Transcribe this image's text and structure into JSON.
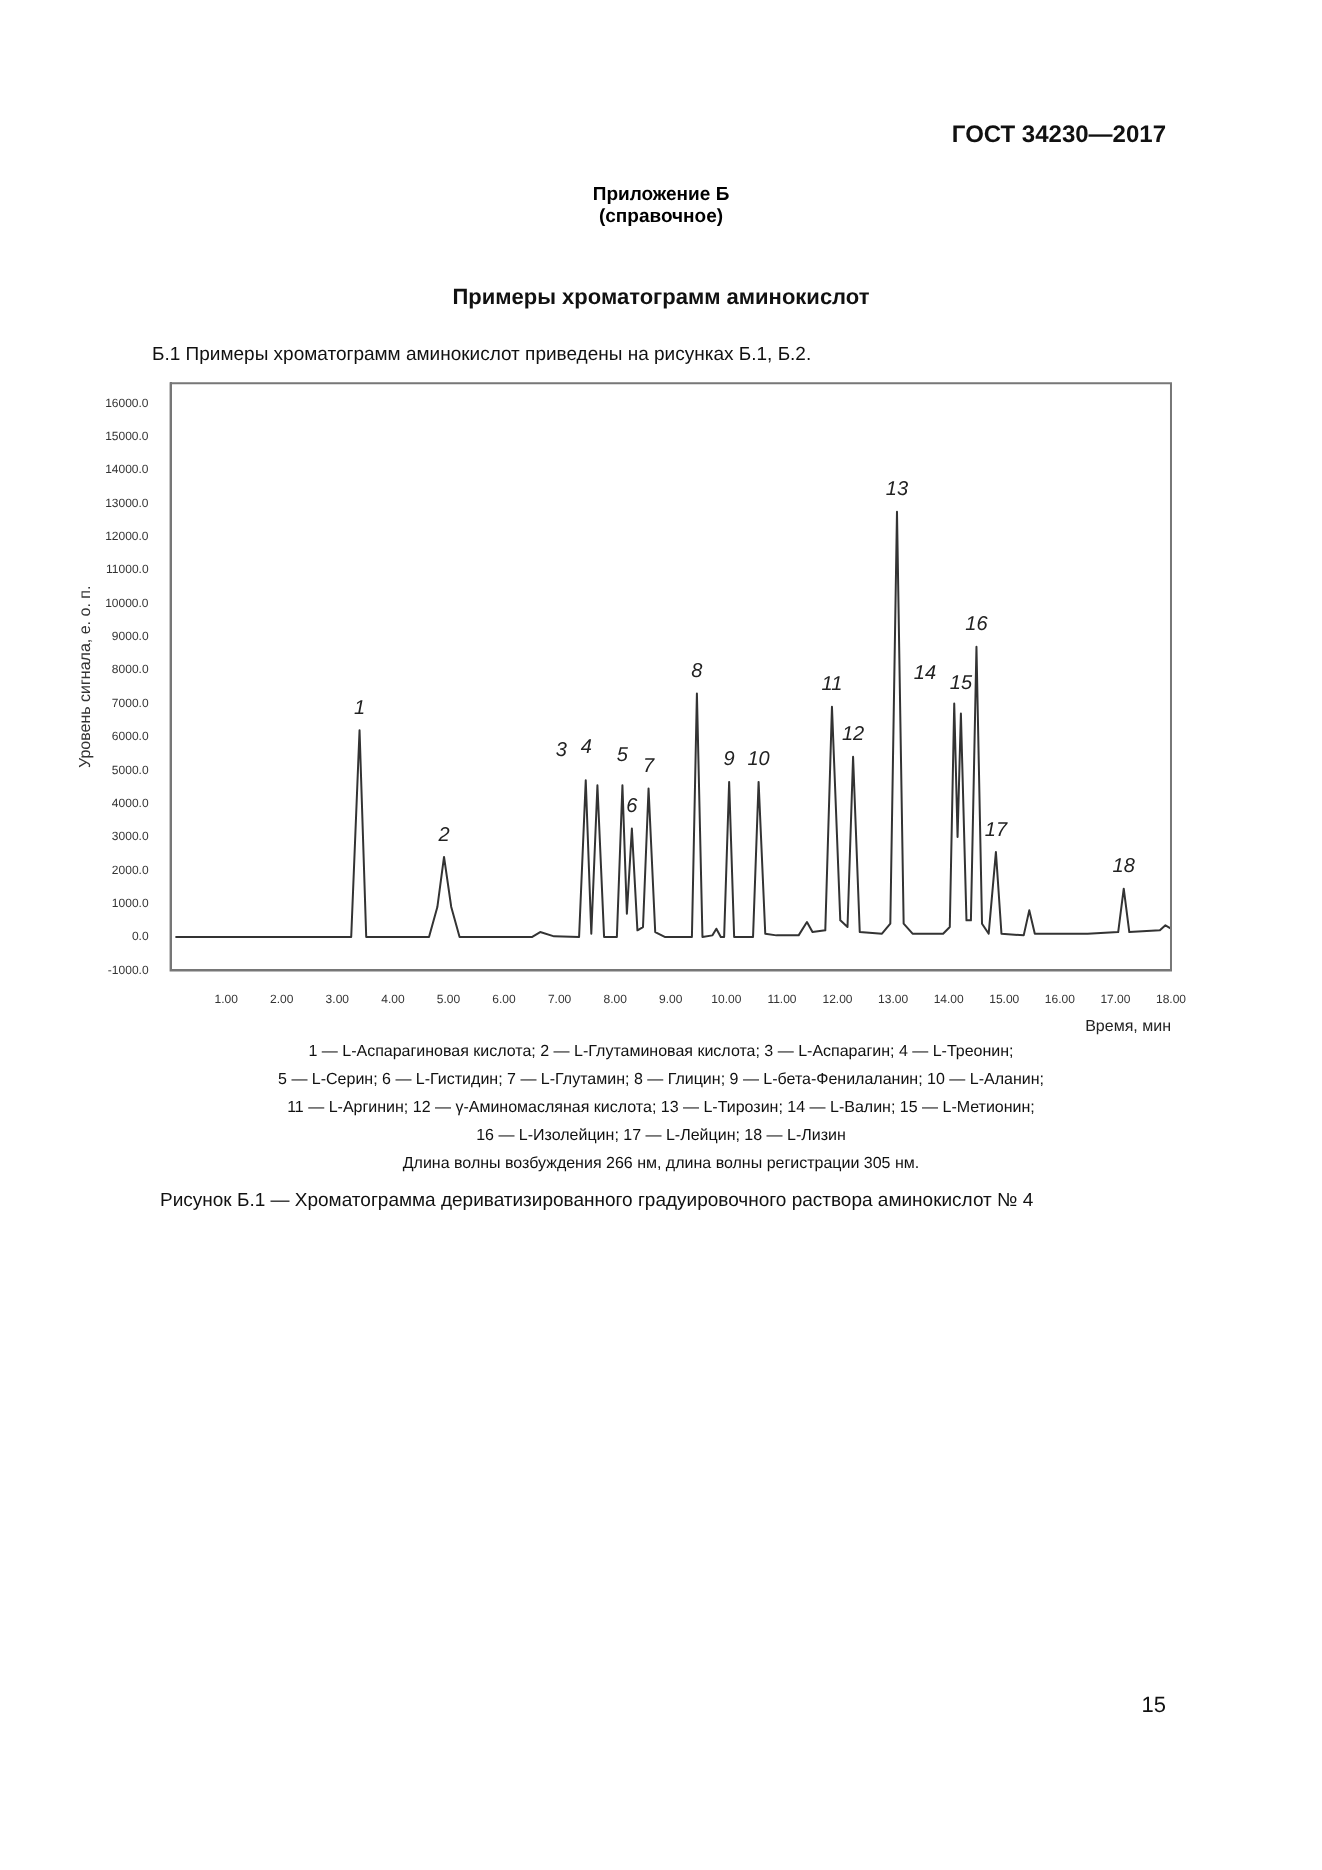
{
  "chart_data": {
    "type": "line",
    "title": "Приложение Б",
    "subtitle": "(справочное)",
    "xlabel": "Время, мин",
    "ylabel": "Уровень сигнала, е. о. п.",
    "x": [
      0.1,
      3.25,
      3.4,
      3.52,
      4.65,
      4.8,
      4.92,
      5.05,
      5.2,
      6.5,
      6.65,
      6.9,
      7.35,
      7.47,
      7.57,
      7.68,
      7.8,
      8.03,
      8.13,
      8.21,
      8.3,
      8.4,
      8.5,
      8.6,
      8.72,
      8.9,
      9.38,
      9.47,
      9.57,
      9.75,
      9.82,
      9.9,
      9.96,
      10.05,
      10.14,
      10.48,
      10.58,
      10.7,
      10.9,
      11.3,
      11.45,
      11.55,
      11.78,
      11.9,
      12.05,
      12.18,
      12.28,
      12.4,
      12.8,
      12.95,
      13.07,
      13.19,
      13.35,
      13.9,
      14.02,
      14.1,
      14.16,
      14.22,
      14.32,
      14.4,
      14.5,
      14.6,
      14.72,
      14.85,
      14.95,
      15.35,
      15.45,
      15.55,
      16.5,
      17.05,
      17.15,
      17.25,
      17.8,
      17.9,
      18.0
    ],
    "series": [
      {
        "color": "#333333",
        "values": [
          0,
          0,
          6200,
          0,
          0,
          900,
          2400,
          900,
          0,
          0,
          150,
          20,
          0,
          4700,
          100,
          4550,
          0,
          0,
          4550,
          700,
          3250,
          200,
          300,
          4450,
          150,
          0,
          0,
          7300,
          0,
          50,
          250,
          0,
          0,
          4650,
          0,
          0,
          4650,
          100,
          50,
          50,
          450,
          150,
          200,
          6900,
          500,
          300,
          5400,
          150,
          100,
          400,
          12750,
          400,
          100,
          100,
          300,
          7000,
          3000,
          6700,
          500,
          500,
          8700,
          400,
          100,
          2550,
          100,
          50,
          800,
          100,
          100,
          150,
          1450,
          150,
          200,
          350,
          250
        ]
      }
    ],
    "xlim": [
      0,
      18
    ],
    "xticks": [
      {
        "value": 1,
        "label": "1.00"
      },
      {
        "value": 2,
        "label": "2.00"
      },
      {
        "value": 3,
        "label": "3.00"
      },
      {
        "value": 4,
        "label": "4.00"
      },
      {
        "value": 5,
        "label": "5.00"
      },
      {
        "value": 6,
        "label": "6.00"
      },
      {
        "value": 7,
        "label": "7.00"
      },
      {
        "value": 8,
        "label": "8.00"
      },
      {
        "value": 9,
        "label": "9.00"
      },
      {
        "value": 10,
        "label": "10.00"
      },
      {
        "value": 11,
        "label": "11.00"
      },
      {
        "value": 12,
        "label": "12.00"
      },
      {
        "value": 13,
        "label": "13.00"
      },
      {
        "value": 14,
        "label": "14.00"
      },
      {
        "value": 15,
        "label": "15.00"
      },
      {
        "value": 16,
        "label": "16.00"
      },
      {
        "value": 17,
        "label": "17.00"
      },
      {
        "value": 18,
        "label": "18.00"
      }
    ],
    "ylim": [
      -1000,
      16600
    ],
    "yticks": [
      {
        "value": -1000,
        "label": "-1000.0"
      },
      {
        "value": 0,
        "label": "0.0"
      },
      {
        "value": 1000,
        "label": "1000.0"
      },
      {
        "value": 2000,
        "label": "2000.0"
      },
      {
        "value": 3000,
        "label": "3000.0"
      },
      {
        "value": 4000,
        "label": "4000.0"
      },
      {
        "value": 5000,
        "label": "5000.0"
      },
      {
        "value": 6000,
        "label": "6000.0"
      },
      {
        "value": 7000,
        "label": "7000.0"
      },
      {
        "value": 8000,
        "label": "8000.0"
      },
      {
        "value": 9000,
        "label": "9000.0"
      },
      {
        "value": 10000,
        "label": "10000.0"
      },
      {
        "value": 11000,
        "label": "11000.0"
      },
      {
        "value": 12000,
        "label": "12000.0"
      },
      {
        "value": 13000,
        "label": "13000.0"
      },
      {
        "value": 14000,
        "label": "14000.0"
      },
      {
        "value": 15000,
        "label": "15000.0"
      },
      {
        "value": 16000,
        "label": "16000.0"
      }
    ],
    "marker": "none",
    "line_style": "solid",
    "grid": false,
    "legend": false,
    "annotations": [
      {
        "text": "1",
        "x": 3.4,
        "y": 6200
      },
      {
        "text": "2",
        "x": 4.92,
        "y": 2400
      },
      {
        "text": "3",
        "x": 7.47,
        "y": 4700
      },
      {
        "text": "4",
        "x": 7.68,
        "y": 4550
      },
      {
        "text": "5",
        "x": 8.13,
        "y": 4550
      },
      {
        "text": "6",
        "x": 8.3,
        "y": 3250
      },
      {
        "text": "7",
        "x": 8.6,
        "y": 4450
      },
      {
        "text": "8",
        "x": 9.47,
        "y": 7300
      },
      {
        "text": "9",
        "x": 10.05,
        "y": 4650
      },
      {
        "text": "10",
        "x": 10.58,
        "y": 4650
      },
      {
        "text": "11",
        "x": 11.9,
        "y": 6900
      },
      {
        "text": "12",
        "x": 12.28,
        "y": 5400
      },
      {
        "text": "13",
        "x": 13.07,
        "y": 12750
      },
      {
        "text": "14",
        "x": 14.1,
        "y": 7000
      },
      {
        "text": "15",
        "x": 14.22,
        "y": 6700
      },
      {
        "text": "16",
        "x": 14.5,
        "y": 8700
      },
      {
        "text": "17",
        "x": 14.85,
        "y": 2550
      },
      {
        "text": "18",
        "x": 17.15,
        "y": 1450
      },
      "ГОСТ 34230—2017",
      "Примеры хроматограмм аминокислот",
      "Б.1 Примеры хроматограмм аминокислот приведены на рисунках Б.1, Б.2.",
      "1 — L-Аспарагиновая кислота; 2 — L-Глутаминовая кислота; 3 — L-Аспарагин; 4 — L-Треонин;",
      "5 — L-Серин; 6 — L-Гистидин; 7 — L-Глутамин; 8 — Глицин; 9 — L-бета-Фенилаланин; 10 — L-Аланин;",
      "11 — L-Аргинин; 12 — γ-Аминомасляная кислота; 13 — L-Тирозин; 14 — L-Валин; 15 — L-Метионин;",
      "16 — L-Изолейцин; 17 — L-Лейцин; 18 — L-Лизин",
      "Длина волны возбуждения 266 нм, длина волны регистрации 305 нм.",
      "Рисунок Б.1 — Хроматограмма дериватизированного градуировочного раствора аминокислот № 4",
      "15"
    ]
  }
}
